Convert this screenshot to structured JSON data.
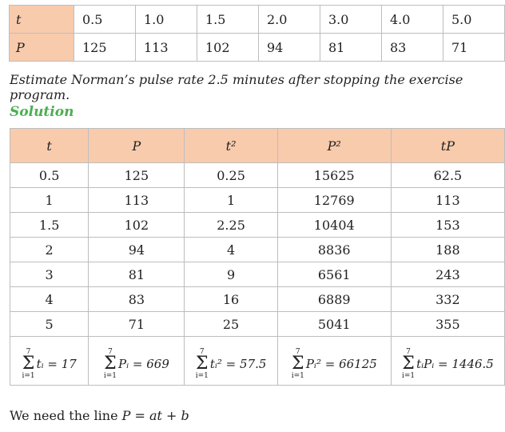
{
  "top_table": {
    "t_label": "t",
    "p_label": "P",
    "t_values": [
      "0.5",
      "1.0",
      "1.5",
      "2.0",
      "3.0",
      "4.0",
      "5.0"
    ],
    "p_values": [
      "125",
      "113",
      "102",
      "94",
      "81",
      "83",
      "71"
    ]
  },
  "prompt": "Estimate Norman’s pulse rate 2.5 minutes after stopping the exercise program.",
  "solution_heading": "Solution",
  "solution_table": {
    "headers": [
      "t",
      "P",
      "t²",
      "P²",
      "tP"
    ],
    "rows": [
      [
        "0.5",
        "125",
        "0.25",
        "15625",
        "62.5"
      ],
      [
        "1",
        "113",
        "1",
        "12769",
        "113"
      ],
      [
        "1.5",
        "102",
        "2.25",
        "10404",
        "153"
      ],
      [
        "2",
        "94",
        "4",
        "8836",
        "188"
      ],
      [
        "3",
        "81",
        "9",
        "6561",
        "243"
      ],
      [
        "4",
        "83",
        "16",
        "6889",
        "332"
      ],
      [
        "5",
        "71",
        "25",
        "5041",
        "355"
      ]
    ],
    "sums": [
      {
        "upper": "7",
        "lower": "i=1",
        "expr": "tᵢ = 17"
      },
      {
        "upper": "7",
        "lower": "i=1",
        "expr": "Pᵢ = 669"
      },
      {
        "upper": "7",
        "lower": "i=1",
        "expr": "tᵢ² = 57.5"
      },
      {
        "upper": "7",
        "lower": "i=1",
        "expr": "Pᵢ² = 66125"
      },
      {
        "upper": "7",
        "lower": "i=1",
        "expr": "tᵢPᵢ = 1446.5"
      }
    ]
  },
  "footer": {
    "text": "We need the line",
    "equation": "P = at + b"
  }
}
